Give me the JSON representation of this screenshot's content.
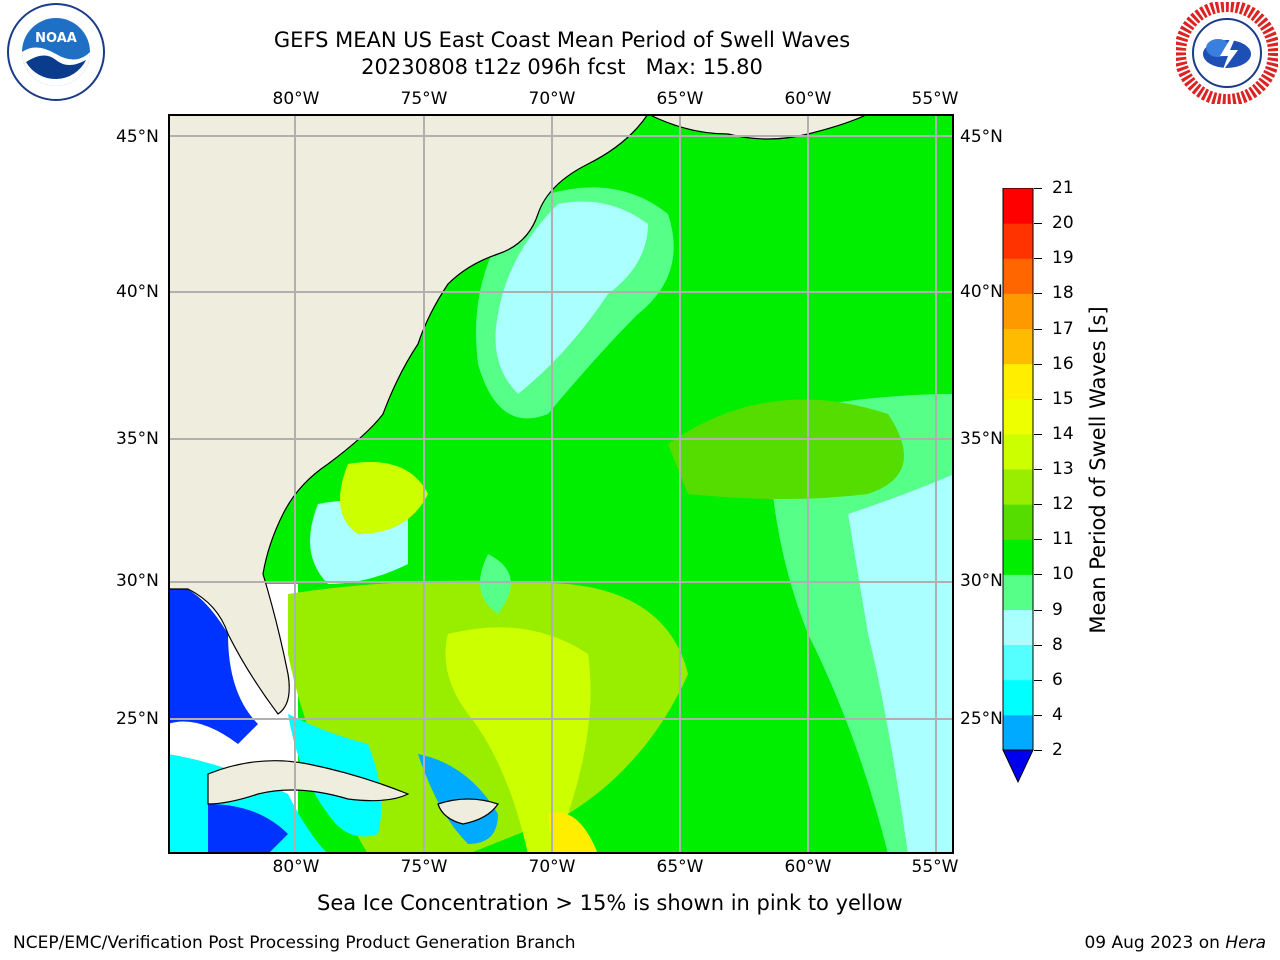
{
  "title": {
    "line1": "GEFS MEAN US East Coast Mean Period of Swell Waves",
    "line2": "20230808 t12z 096h fcst   Max: 15.80"
  },
  "logos": {
    "left": "noaa-logo",
    "right": "nws-logo"
  },
  "map": {
    "lon_labels": [
      "80°W",
      "75°W",
      "70°W",
      "65°W",
      "60°W",
      "55°W"
    ],
    "lat_labels": [
      "45°N",
      "40°N",
      "35°N",
      "30°N",
      "25°N"
    ],
    "colors": {
      "land": "#efeddd",
      "grid": "#b0b0b0",
      "coast": "#000000"
    }
  },
  "colorbar": {
    "label": "Mean Period of Swell Waves [s]",
    "ticks": [
      "2",
      "4",
      "6",
      "8",
      "9",
      "10",
      "11",
      "12",
      "13",
      "14",
      "15",
      "16",
      "17",
      "18",
      "19",
      "20",
      "21"
    ],
    "colors": [
      "#0033ff",
      "#00aaff",
      "#00ffff",
      "#55ffff",
      "#aaffff",
      "#55ff88",
      "#00ee00",
      "#55dd00",
      "#99ee00",
      "#ccff00",
      "#eeff00",
      "#ffee00",
      "#ffbb00",
      "#ff9900",
      "#ff6600",
      "#ff3300",
      "#ff0000"
    ],
    "extend_color": "#0000ee"
  },
  "footnote": "Sea Ice Concentration > 15% is shown in pink to yellow",
  "credit": "NCEP/EMC/Verification Post Processing Product Generation Branch",
  "date": {
    "text": "09 Aug 2023 on ",
    "host": "Hera"
  }
}
